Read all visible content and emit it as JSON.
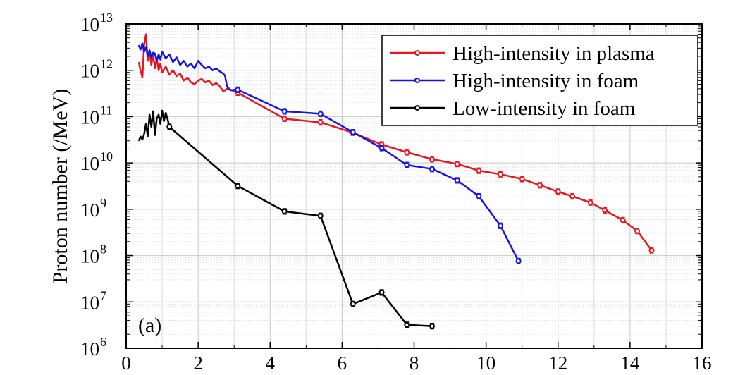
{
  "chart_data": {
    "type": "line",
    "panel_label": "(a)",
    "xlabel": "",
    "ylabel": "Proton number (/MeV)",
    "xlim": [
      0,
      16
    ],
    "ylim": [
      1000000.0,
      10000000000000.0
    ],
    "yscale": "log",
    "grid": true,
    "legend_position": "top-right",
    "x_ticks": [
      {
        "value": 0,
        "label": "0"
      },
      {
        "value": 2,
        "label": "2"
      },
      {
        "value": 4,
        "label": "4"
      },
      {
        "value": 6,
        "label": "6"
      },
      {
        "value": 8,
        "label": "8"
      },
      {
        "value": 10,
        "label": "10"
      },
      {
        "value": 12,
        "label": "12"
      },
      {
        "value": 14,
        "label": "14"
      },
      {
        "value": 16,
        "label": "16"
      }
    ],
    "y_ticks": [
      {
        "value": 1000000.0,
        "base": "10",
        "exp": "6"
      },
      {
        "value": 10000000.0,
        "base": "10",
        "exp": "7"
      },
      {
        "value": 100000000.0,
        "base": "10",
        "exp": "8"
      },
      {
        "value": 1000000000.0,
        "base": "10",
        "exp": "9"
      },
      {
        "value": 10000000000.0,
        "base": "10",
        "exp": "10"
      },
      {
        "value": 100000000000.0,
        "base": "10",
        "exp": "11"
      },
      {
        "value": 1000000000000.0,
        "base": "10",
        "exp": "12"
      },
      {
        "value": 10000000000000.0,
        "base": "10",
        "exp": "13"
      }
    ],
    "series": [
      {
        "name": "High-intensity in plasma",
        "color": "#e8161e",
        "noisy": [
          [
            0.35,
            1500000000000.0
          ],
          [
            0.4,
            1000000000000.0
          ],
          [
            0.45,
            700000000000.0
          ],
          [
            0.5,
            3500000000000.0
          ],
          [
            0.55,
            6000000000000.0
          ],
          [
            0.6,
            1600000000000.0
          ],
          [
            0.65,
            2500000000000.0
          ],
          [
            0.7,
            1300000000000.0
          ],
          [
            0.75,
            2200000000000.0
          ],
          [
            0.8,
            1100000000000.0
          ],
          [
            0.85,
            1800000000000.0
          ],
          [
            0.9,
            1000000000000.0
          ],
          [
            0.95,
            1400000000000.0
          ],
          [
            1.0,
            900000000000.0
          ],
          [
            1.1,
            1200000000000.0
          ],
          [
            1.2,
            800000000000.0
          ],
          [
            1.3,
            1000000000000.0
          ],
          [
            1.4,
            750000000000.0
          ],
          [
            1.5,
            850000000000.0
          ],
          [
            1.6,
            600000000000.0
          ],
          [
            1.7,
            700000000000.0
          ],
          [
            1.8,
            550000000000.0
          ],
          [
            1.9,
            500000000000.0
          ],
          [
            2.0,
            600000000000.0
          ],
          [
            2.1,
            650000000000.0
          ],
          [
            2.2,
            550000000000.0
          ],
          [
            2.3,
            600000000000.0
          ],
          [
            2.4,
            480000000000.0
          ],
          [
            2.5,
            530000000000.0
          ],
          [
            2.6,
            450000000000.0
          ],
          [
            2.7,
            350000000000.0
          ],
          [
            2.8,
            400000000000.0
          ],
          [
            2.9,
            380000000000.0
          ],
          [
            3.0,
            350000000000.0
          ]
        ],
        "points": [
          [
            3.1,
            330000000000.0
          ],
          [
            4.4,
            90000000000.0
          ],
          [
            5.4,
            75000000000.0
          ],
          [
            6.3,
            45000000000.0
          ],
          [
            7.1,
            25000000000.0
          ],
          [
            7.8,
            17000000000.0
          ],
          [
            8.5,
            12000000000.0
          ],
          [
            9.2,
            9500000000.0
          ],
          [
            9.8,
            6800000000.0
          ],
          [
            10.4,
            5700000000.0
          ],
          [
            11.0,
            4500000000.0
          ],
          [
            11.5,
            3300000000.0
          ],
          [
            12.0,
            2400000000.0
          ],
          [
            12.4,
            1900000000.0
          ],
          [
            12.9,
            1400000000.0
          ],
          [
            13.3,
            950000000.0
          ],
          [
            13.8,
            580000000.0
          ],
          [
            14.2,
            340000000.0
          ],
          [
            14.6,
            130000000.0
          ]
        ]
      },
      {
        "name": "High-intensity in foam",
        "color": "#1414e6",
        "noisy": [
          [
            0.35,
            3500000000000.0
          ],
          [
            0.4,
            2800000000000.0
          ],
          [
            0.45,
            3800000000000.0
          ],
          [
            0.5,
            2500000000000.0
          ],
          [
            0.55,
            3200000000000.0
          ],
          [
            0.6,
            2000000000000.0
          ],
          [
            0.65,
            2700000000000.0
          ],
          [
            0.7,
            1900000000000.0
          ],
          [
            0.75,
            2400000000000.0
          ],
          [
            0.8,
            2300000000000.0
          ],
          [
            0.85,
            1600000000000.0
          ],
          [
            0.9,
            2200000000000.0
          ],
          [
            0.95,
            1700000000000.0
          ],
          [
            1.0,
            2500000000000.0
          ],
          [
            1.1,
            1800000000000.0
          ],
          [
            1.2,
            2200000000000.0
          ],
          [
            1.3,
            1500000000000.0
          ],
          [
            1.4,
            1900000000000.0
          ],
          [
            1.5,
            1300000000000.0
          ],
          [
            1.6,
            1600000000000.0
          ],
          [
            1.7,
            1200000000000.0
          ],
          [
            1.8,
            1400000000000.0
          ],
          [
            1.9,
            1100000000000.0
          ],
          [
            2.0,
            1600000000000.0
          ],
          [
            2.1,
            1300000000000.0
          ],
          [
            2.2,
            1100000000000.0
          ],
          [
            2.3,
            1200000000000.0
          ],
          [
            2.4,
            1000000000000.0
          ],
          [
            2.5,
            1100000000000.0
          ],
          [
            2.6,
            950000000000.0
          ],
          [
            2.7,
            850000000000.0
          ],
          [
            2.75,
            750000000000.0
          ],
          [
            2.8,
            450000000000.0
          ],
          [
            2.9,
            370000000000.0
          ],
          [
            3.0,
            380000000000.0
          ]
        ],
        "points": [
          [
            3.1,
            380000000000.0
          ],
          [
            4.4,
            130000000000.0
          ],
          [
            5.4,
            115000000000.0
          ],
          [
            6.3,
            46000000000.0
          ],
          [
            7.1,
            21000000000.0
          ],
          [
            7.8,
            9000000000.0
          ],
          [
            8.5,
            7400000000.0
          ],
          [
            9.2,
            4200000000.0
          ],
          [
            9.8,
            1900000000.0
          ],
          [
            10.4,
            440000000.0
          ],
          [
            10.9,
            76000000.0
          ]
        ]
      },
      {
        "name": "Low-intensity in foam",
        "color": "#000000",
        "noisy": [
          [
            0.35,
            30000000000.0
          ],
          [
            0.4,
            37000000000.0
          ],
          [
            0.45,
            32000000000.0
          ],
          [
            0.5,
            42000000000.0
          ],
          [
            0.55,
            70000000000.0
          ],
          [
            0.6,
            38000000000.0
          ],
          [
            0.65,
            110000000000.0
          ],
          [
            0.7,
            60000000000.0
          ],
          [
            0.75,
            130000000000.0
          ],
          [
            0.8,
            40000000000.0
          ],
          [
            0.85,
            90000000000.0
          ],
          [
            0.9,
            110000000000.0
          ],
          [
            0.95,
            70000000000.0
          ],
          [
            1.0,
            135000000000.0
          ],
          [
            1.05,
            80000000000.0
          ],
          [
            1.1,
            120000000000.0
          ],
          [
            1.15,
            90000000000.0
          ],
          [
            1.2,
            60000000000.0
          ]
        ],
        "points": [
          [
            1.2,
            60000000000.0
          ],
          [
            3.1,
            3200000000.0
          ],
          [
            4.4,
            900000000.0
          ],
          [
            5.4,
            720000000.0
          ],
          [
            6.3,
            9000000.0
          ],
          [
            7.1,
            16000000.0
          ],
          [
            7.8,
            3200000.0
          ],
          [
            8.5,
            3000000.0
          ]
        ]
      }
    ]
  }
}
